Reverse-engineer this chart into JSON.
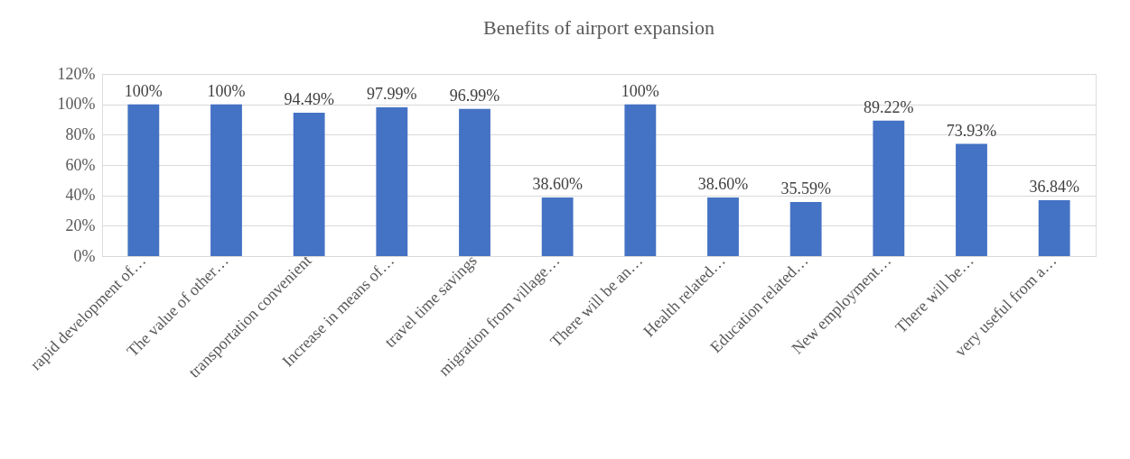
{
  "chart_data": {
    "type": "bar",
    "title": "Benefits of airport expansion",
    "categories": [
      "rapid development of…",
      "The value of other…",
      "transportation convenient",
      "Increase in means of…",
      "travel time savings",
      "migration from village…",
      "There will be an…",
      "Health related…",
      "Education related…",
      "New employment…",
      "There will be…",
      "very useful from a…"
    ],
    "series": [
      {
        "color": "#4472c4",
        "values": [
          100,
          100,
          94.49,
          97.99,
          96.99,
          38.6,
          100,
          38.6,
          35.59,
          89.22,
          73.93,
          36.84
        ],
        "value_labels": [
          "100%",
          "100%",
          "94.49%",
          "97.99%",
          "96.99%",
          "38.60%",
          "100%",
          "38.60%",
          "35.59%",
          "89.22%",
          "73.93%",
          "36.84%"
        ]
      }
    ],
    "ylim": [
      0,
      120
    ],
    "yticks": [
      {
        "value": 0,
        "label": "0%"
      },
      {
        "value": 20,
        "label": "20%"
      },
      {
        "value": 40,
        "label": "40%"
      },
      {
        "value": 60,
        "label": "60%"
      },
      {
        "value": 80,
        "label": "80%"
      },
      {
        "value": 100,
        "label": "100%"
      },
      {
        "value": 120,
        "label": "120%"
      }
    ],
    "grid": "y"
  }
}
